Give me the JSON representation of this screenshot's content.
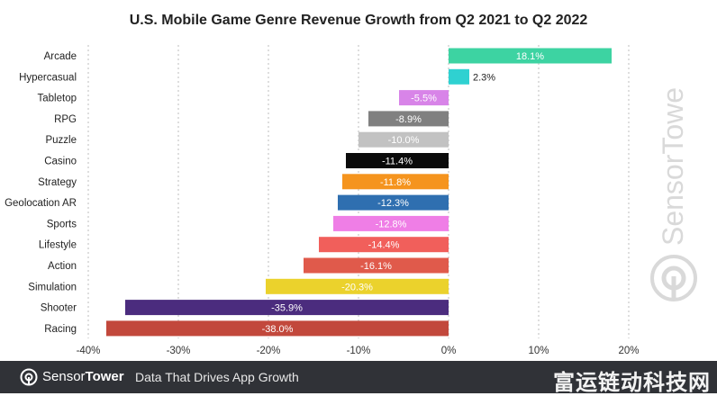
{
  "chart_data": {
    "type": "bar",
    "orientation": "horizontal",
    "title": "U.S. Mobile Game Genre Revenue Growth from Q2 2021 to Q2 2022",
    "xlabel": "",
    "ylabel": "",
    "xlim": [
      -40,
      20
    ],
    "xticks": [
      "-40%",
      "-30%",
      "-20%",
      "-10%",
      "0%",
      "10%",
      "20%"
    ],
    "grid": true,
    "categories": [
      "Arcade",
      "Hypercasual",
      "Tabletop",
      "RPG",
      "Puzzle",
      "Casino",
      "Strategy",
      "Geolocation AR",
      "Sports",
      "Lifestyle",
      "Action",
      "Simulation",
      "Shooter",
      "Racing"
    ],
    "values": [
      18.1,
      2.3,
      -5.5,
      -8.9,
      -10.0,
      -11.4,
      -11.8,
      -12.3,
      -12.8,
      -14.4,
      -16.1,
      -20.3,
      -35.9,
      -38.0
    ],
    "labels": [
      "18.1%",
      "2.3%",
      "-5.5%",
      "-8.9%",
      "-10.0%",
      "-11.4%",
      "-11.8%",
      "-12.3%",
      "-12.8%",
      "-14.4%",
      "-16.1%",
      "-20.3%",
      "-35.9%",
      "-38.0%"
    ],
    "colors": [
      "#3dd3a2",
      "#2fd1d1",
      "#d884e8",
      "#808080",
      "#c2c2c2",
      "#0b0b0b",
      "#f5941e",
      "#2f6fb0",
      "#ef7ee6",
      "#f15f5b",
      "#e05a4b",
      "#ebd22c",
      "#4b2c7e",
      "#c2483c"
    ]
  },
  "watermark": {
    "text": "SensorTower",
    "icon": "sensortower-logo-icon"
  },
  "footer": {
    "brand_regular": "Sensor",
    "brand_bold": "Tower",
    "tagline": "Data That Drives App Growth",
    "stamp": "富运链动科技网",
    "icon": "sensortower-logo-icon"
  }
}
